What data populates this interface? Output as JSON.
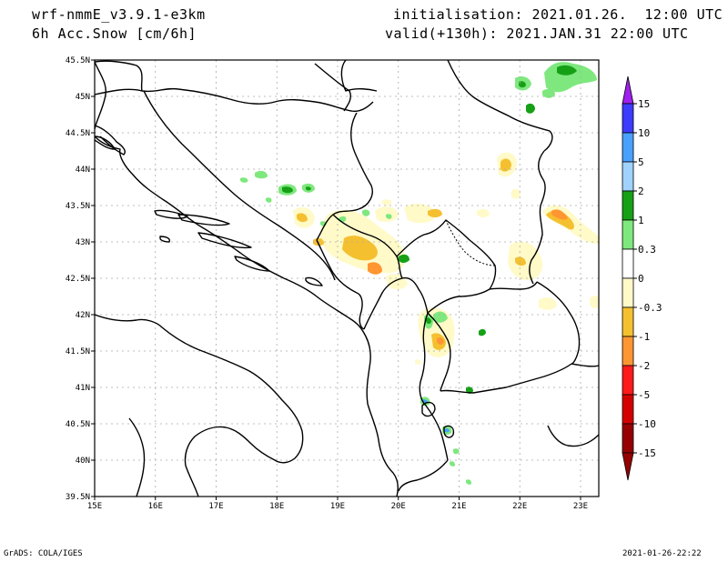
{
  "header": {
    "model": "wrf-nmmE_v3.9.1-e3km",
    "variable": "6h Acc.Snow [cm/6h]",
    "initialisation": "initialisation: 2021.01.26.  12:00 UTC",
    "valid": "valid(+130h): 2021.JAN.31 22:00 UTC"
  },
  "footer": {
    "left": "GrADS: COLA/IGES",
    "right": "2021-01-26-22:22"
  },
  "map": {
    "lon_ticks": [
      "15E",
      "16E",
      "17E",
      "18E",
      "19E",
      "20E",
      "21E",
      "22E",
      "23E"
    ],
    "lat_ticks": [
      "45.5N",
      "45N",
      "44.5N",
      "44N",
      "43.5N",
      "43N",
      "42.5N",
      "42N",
      "41.5N",
      "41N",
      "40.5N",
      "40N",
      "39.5N"
    ],
    "grid": true
  },
  "colorbar": {
    "labels": [
      "15",
      "10",
      "5",
      "2",
      "1",
      "0.3",
      "0",
      "-0.3",
      "-1",
      "-2",
      "-5",
      "-10",
      "-15"
    ],
    "colors": [
      "#a020f0",
      "#3c3cff",
      "#4aa0ff",
      "#a0d2ff",
      "#16a016",
      "#7ee87e",
      "#ffffff",
      "#fffac8",
      "#f5c030",
      "#ff9632",
      "#ff1a1a",
      "#d40000",
      "#960000"
    ],
    "top_arrow_color": "#a020f0",
    "bottom_arrow_color": "#960000"
  }
}
